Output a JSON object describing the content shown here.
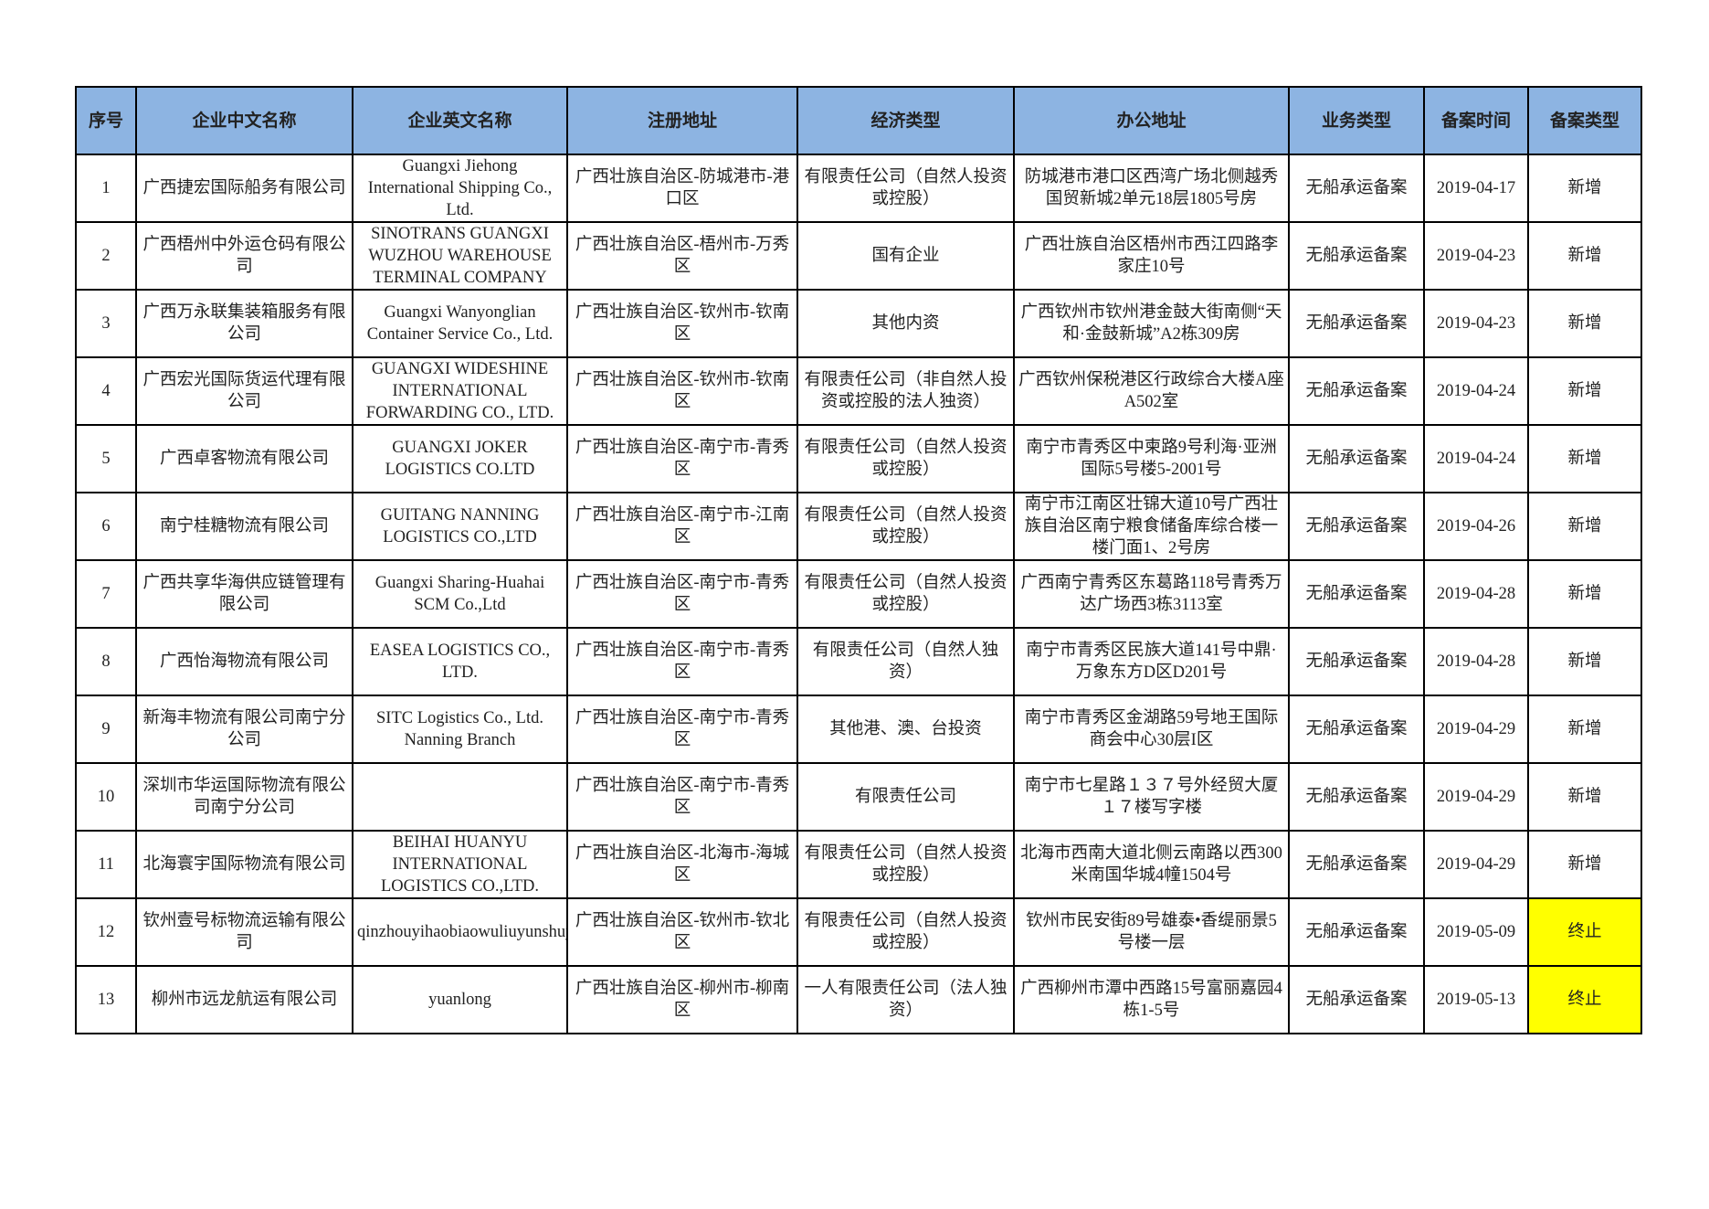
{
  "headers": [
    "序号",
    "企业中文名称",
    "企业英文名称",
    "注册地址",
    "经济类型",
    "办公地址",
    "业务类型",
    "备案时间",
    "备案类型"
  ],
  "highlight_color": "#ffff00",
  "header_color": "#8db4e2",
  "rows": [
    [
      "1",
      "广西捷宏国际船务有限公司",
      "Guangxi Jiehong International Shipping Co., Ltd.",
      "广西壮族自治区-防城港市-港口区",
      "有限责任公司（自然人投资或控股）",
      "防城港市港口区西湾广场北侧越秀国贸新城2单元18层1805号房",
      "无船承运备案",
      "2019-04-17",
      "新增"
    ],
    [
      "2",
      "广西梧州中外运仓码有限公司",
      "SINOTRANS GUANGXI WUZHOU WAREHOUSE TERMINAL COMPANY",
      "广西壮族自治区-梧州市-万秀区",
      "国有企业",
      "广西壮族自治区梧州市西江四路李家庄10号",
      "无船承运备案",
      "2019-04-23",
      "新增"
    ],
    [
      "3",
      "广西万永联集装箱服务有限公司",
      "Guangxi Wanyonglian Container Service Co., Ltd.",
      "广西壮族自治区-钦州市-钦南区",
      "其他内资",
      "广西钦州市钦州港金鼓大街南侧“天和·金鼓新城”A2栋309房",
      "无船承运备案",
      "2019-04-23",
      "新增"
    ],
    [
      "4",
      "广西宏光国际货运代理有限公司",
      "GUANGXI WIDESHINE INTERNATIONAL FORWARDING CO., LTD.",
      "广西壮族自治区-钦州市-钦南区",
      "有限责任公司（非自然人投资或控股的法人独资）",
      "广西钦州保税港区行政综合大楼A座A502室",
      "无船承运备案",
      "2019-04-24",
      "新增"
    ],
    [
      "5",
      "广西卓客物流有限公司",
      "GUANGXI JOKER LOGISTICS CO.LTD",
      "广西壮族自治区-南宁市-青秀区",
      "有限责任公司（自然人投资或控股）",
      "南宁市青秀区中柬路9号利海·亚洲国际5号楼5-2001号",
      "无船承运备案",
      "2019-04-24",
      "新增"
    ],
    [
      "6",
      "南宁桂糖物流有限公司",
      "GUITANG NANNING LOGISTICS CO.,LTD",
      "广西壮族自治区-南宁市-江南区",
      "有限责任公司（自然人投资或控股）",
      "南宁市江南区壮锦大道10号广西壮族自治区南宁粮食储备库综合楼一楼门面1、2号房",
      "无船承运备案",
      "2019-04-26",
      "新增"
    ],
    [
      "7",
      "广西共享华海供应链管理有限公司",
      "Guangxi Sharing-Huahai SCM Co.,Ltd",
      "广西壮族自治区-南宁市-青秀区",
      "有限责任公司（自然人投资或控股）",
      "广西南宁青秀区东葛路118号青秀万达广场西3栋3113室",
      "无船承运备案",
      "2019-04-28",
      "新增"
    ],
    [
      "8",
      "广西怡海物流有限公司",
      "EASEA LOGISTICS CO., LTD.",
      "广西壮族自治区-南宁市-青秀区",
      "有限责任公司（自然人独资）",
      "南宁市青秀区民族大道141号中鼎·万象东方D区D201号",
      "无船承运备案",
      "2019-04-28",
      "新增"
    ],
    [
      "9",
      "新海丰物流有限公司南宁分公司",
      "SITC Logistics Co., Ltd. Nanning Branch",
      "广西壮族自治区-南宁市-青秀区",
      "其他港、澳、台投资",
      "南宁市青秀区金湖路59号地王国际商会中心30层I区",
      "无船承运备案",
      "2019-04-29",
      "新增"
    ],
    [
      "10",
      "深圳市华运国际物流有限公司南宁分公司",
      "",
      "广西壮族自治区-南宁市-青秀区",
      "有限责任公司",
      "南宁市七星路１３７号外经贸大厦１７楼写字楼",
      "无船承运备案",
      "2019-04-29",
      "新增"
    ],
    [
      "11",
      "北海寰宇国际物流有限公司",
      "BEIHAI HUANYU INTERNATIONAL LOGISTICS CO.,LTD.",
      "广西壮族自治区-北海市-海城区",
      "有限责任公司（自然人投资或控股）",
      "北海市西南大道北侧云南路以西300米南国华城4幢1504号",
      "无船承运备案",
      "2019-04-29",
      "新增"
    ],
    [
      "12",
      "钦州壹号标物流运输有限公司",
      "qinzhouyihaobiaowuliuyunshuyouxiangongsi",
      "广西壮族自治区-钦州市-钦北区",
      "有限责任公司（自然人投资或控股）",
      "钦州市民安街89号雄泰•香缇丽景5号楼一层",
      "无船承运备案",
      "2019-05-09",
      "终止"
    ],
    [
      "13",
      "柳州市远龙航运有限公司",
      "yuanlong",
      "广西壮族自治区-柳州市-柳南区",
      "一人有限责任公司（法人独资）",
      "广西柳州市潭中西路15号富丽嘉园4栋1-5号",
      "无船承运备案",
      "2019-05-13",
      "终止"
    ]
  ]
}
